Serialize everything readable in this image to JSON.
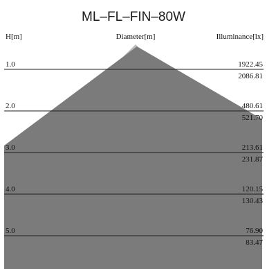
{
  "chart_data": {
    "type": "area",
    "title": "ML–FL–FIN–80W",
    "header_left": "H[m]",
    "header_center": "Diameter[m]",
    "header_right": "Illuminance[lx]",
    "rows": [
      {
        "h": "1.0",
        "values": [
          "1922.45",
          "2086.81"
        ]
      },
      {
        "h": "2.0",
        "values": [
          "480.61",
          "521.70"
        ]
      },
      {
        "h": "3.0",
        "values": [
          "213.61",
          "231.87"
        ]
      },
      {
        "h": "4.0",
        "values": [
          "120.15",
          "130.43"
        ]
      },
      {
        "h": "5.0",
        "values": [
          "76.90",
          "83.47"
        ]
      }
    ],
    "series": [
      {
        "values": [
          "1922.45",
          "480.61",
          "213.61",
          "120.15",
          "76.90"
        ]
      },
      {
        "values": [
          "2086.81",
          "521.70",
          "231.87",
          "130.43",
          "83.47"
        ]
      }
    ],
    "colors": {
      "cone_light": "#bcbcbc",
      "cone_dark": "#7b7b7b",
      "gridline": "#1e1e1e",
      "text": "#111111"
    }
  }
}
